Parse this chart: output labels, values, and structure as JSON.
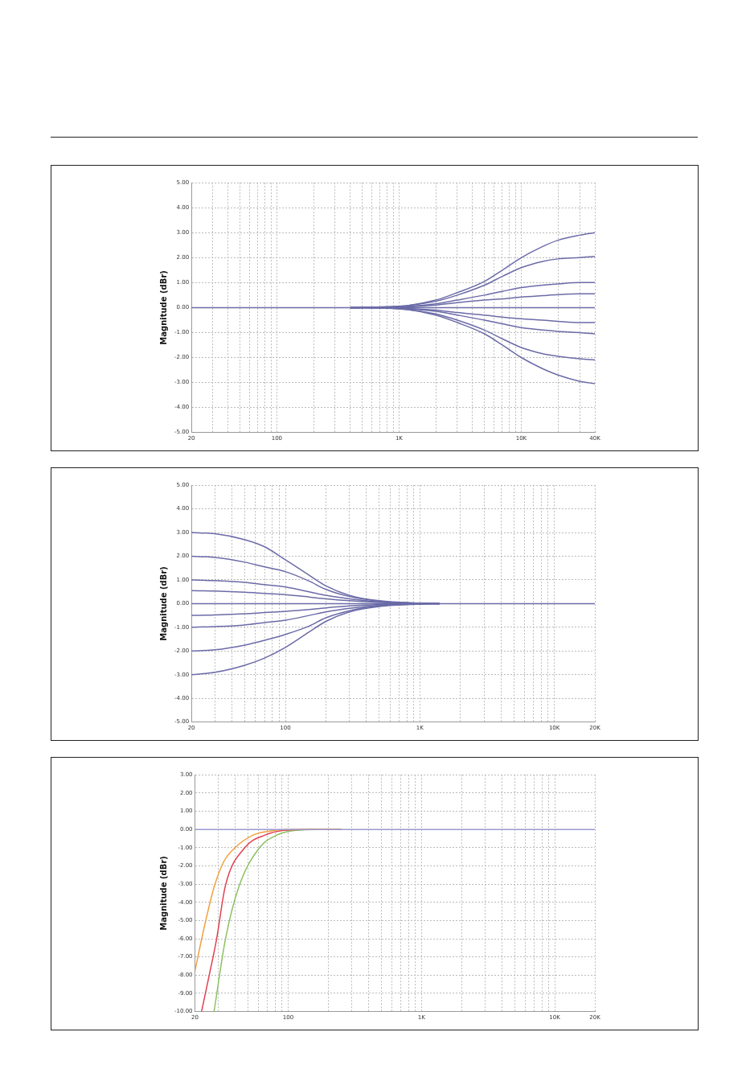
{
  "chart_data": [
    {
      "type": "line",
      "log": "x",
      "grid": true,
      "ylabel": "Magnitude (dBr)",
      "xlim": [
        20,
        40000
      ],
      "ylim": [
        -5,
        5
      ],
      "xticks": [
        {
          "value": 20,
          "label": "20"
        },
        {
          "value": 30,
          "label": null
        },
        {
          "value": 40,
          "label": null
        },
        {
          "value": 50,
          "label": null
        },
        {
          "value": 60,
          "label": null
        },
        {
          "value": 70,
          "label": null
        },
        {
          "value": 80,
          "label": null
        },
        {
          "value": 90,
          "label": null
        },
        {
          "value": 100,
          "label": "100"
        },
        {
          "value": 200,
          "label": null
        },
        {
          "value": 300,
          "label": null
        },
        {
          "value": 400,
          "label": null
        },
        {
          "value": 500,
          "label": null
        },
        {
          "value": 600,
          "label": null
        },
        {
          "value": 700,
          "label": null
        },
        {
          "value": 800,
          "label": null
        },
        {
          "value": 900,
          "label": null
        },
        {
          "value": 1000,
          "label": "1K"
        },
        {
          "value": 2000,
          "label": null
        },
        {
          "value": 3000,
          "label": null
        },
        {
          "value": 4000,
          "label": null
        },
        {
          "value": 5000,
          "label": null
        },
        {
          "value": 6000,
          "label": null
        },
        {
          "value": 7000,
          "label": null
        },
        {
          "value": 8000,
          "label": null
        },
        {
          "value": 9000,
          "label": null
        },
        {
          "value": 10000,
          "label": "10K"
        },
        {
          "value": 20000,
          "label": null
        },
        {
          "value": 30000,
          "label": null
        },
        {
          "value": 40000,
          "label": "40K"
        }
      ],
      "yticks": [
        {
          "value": 5,
          "label": "5.00"
        },
        {
          "value": 4,
          "label": "4.00"
        },
        {
          "value": 3,
          "label": "3.00"
        },
        {
          "value": 2,
          "label": "2.00"
        },
        {
          "value": 1,
          "label": "1.00"
        },
        {
          "value": 0,
          "label": "0.00"
        },
        {
          "value": -1,
          "label": "-1.00"
        },
        {
          "value": -2,
          "label": "-2.00"
        },
        {
          "value": -3,
          "label": "-3.00"
        },
        {
          "value": -4,
          "label": "-4.00"
        },
        {
          "value": -5,
          "label": "-5.00"
        }
      ],
      "series": [
        {
          "color": "#6b6ba8",
          "x": [
            400,
            1000,
            2000,
            3000,
            5000,
            7000,
            10000,
            15000,
            20000,
            30000,
            40000
          ],
          "values": [
            0,
            0.05,
            0.3,
            0.6,
            1.05,
            1.5,
            2.0,
            2.45,
            2.7,
            2.9,
            3.0
          ]
        },
        {
          "color": "#6b6ba8",
          "x": [
            400,
            1000,
            2000,
            3000,
            5000,
            7000,
            10000,
            15000,
            20000,
            30000,
            40000
          ],
          "values": [
            0,
            0.05,
            0.25,
            0.5,
            0.9,
            1.25,
            1.6,
            1.85,
            1.95,
            2.0,
            2.05
          ]
        },
        {
          "color": "#6b6ba8",
          "x": [
            400,
            1000,
            2000,
            3000,
            5000,
            7000,
            10000,
            15000,
            20000,
            30000,
            40000
          ],
          "values": [
            0,
            0.03,
            0.15,
            0.3,
            0.5,
            0.65,
            0.8,
            0.9,
            0.95,
            1.0,
            1.0
          ]
        },
        {
          "color": "#6b6ba8",
          "x": [
            400,
            1000,
            2000,
            3000,
            5000,
            7000,
            10000,
            15000,
            20000,
            30000,
            40000
          ],
          "values": [
            0,
            0.02,
            0.1,
            0.2,
            0.3,
            0.35,
            0.42,
            0.48,
            0.52,
            0.55,
            0.55
          ]
        },
        {
          "color": "#6b6ba8",
          "x": [
            20,
            40000
          ],
          "values": [
            0,
            0
          ]
        },
        {
          "color": "#6b6ba8",
          "x": [
            400,
            1000,
            2000,
            3000,
            5000,
            7000,
            10000,
            15000,
            20000,
            30000,
            40000
          ],
          "values": [
            0,
            -0.02,
            -0.1,
            -0.2,
            -0.3,
            -0.38,
            -0.45,
            -0.5,
            -0.55,
            -0.6,
            -0.6
          ]
        },
        {
          "color": "#6b6ba8",
          "x": [
            400,
            1000,
            2000,
            3000,
            5000,
            7000,
            10000,
            15000,
            20000,
            30000,
            40000
          ],
          "values": [
            0,
            -0.03,
            -0.15,
            -0.3,
            -0.5,
            -0.65,
            -0.8,
            -0.9,
            -0.95,
            -1.0,
            -1.05
          ]
        },
        {
          "color": "#6b6ba8",
          "x": [
            400,
            1000,
            2000,
            3000,
            5000,
            7000,
            10000,
            15000,
            20000,
            30000,
            40000
          ],
          "values": [
            0,
            -0.05,
            -0.25,
            -0.5,
            -0.9,
            -1.25,
            -1.6,
            -1.85,
            -1.95,
            -2.05,
            -2.1
          ]
        },
        {
          "color": "#6b6ba8",
          "x": [
            400,
            1000,
            2000,
            3000,
            5000,
            7000,
            10000,
            15000,
            20000,
            30000,
            40000
          ],
          "values": [
            0,
            -0.05,
            -0.3,
            -0.6,
            -1.05,
            -1.5,
            -2.0,
            -2.45,
            -2.7,
            -2.95,
            -3.05
          ]
        }
      ]
    },
    {
      "type": "line",
      "log": "x",
      "grid": true,
      "ylabel": "Magnitude (dBr)",
      "xlim": [
        20,
        20000
      ],
      "ylim": [
        -5,
        5
      ],
      "xticks": [
        {
          "value": 20,
          "label": "20"
        },
        {
          "value": 30,
          "label": null
        },
        {
          "value": 40,
          "label": null
        },
        {
          "value": 50,
          "label": null
        },
        {
          "value": 60,
          "label": null
        },
        {
          "value": 70,
          "label": null
        },
        {
          "value": 80,
          "label": null
        },
        {
          "value": 90,
          "label": null
        },
        {
          "value": 100,
          "label": "100"
        },
        {
          "value": 200,
          "label": null
        },
        {
          "value": 300,
          "label": null
        },
        {
          "value": 400,
          "label": null
        },
        {
          "value": 500,
          "label": null
        },
        {
          "value": 600,
          "label": null
        },
        {
          "value": 700,
          "label": null
        },
        {
          "value": 800,
          "label": null
        },
        {
          "value": 900,
          "label": null
        },
        {
          "value": 1000,
          "label": "1K"
        },
        {
          "value": 2000,
          "label": null
        },
        {
          "value": 3000,
          "label": null
        },
        {
          "value": 4000,
          "label": null
        },
        {
          "value": 5000,
          "label": null
        },
        {
          "value": 6000,
          "label": null
        },
        {
          "value": 7000,
          "label": null
        },
        {
          "value": 8000,
          "label": null
        },
        {
          "value": 9000,
          "label": null
        },
        {
          "value": 10000,
          "label": "10K"
        },
        {
          "value": 20000,
          "label": "20K"
        }
      ],
      "yticks": [
        {
          "value": 5,
          "label": "5.00"
        },
        {
          "value": 4,
          "label": "4.00"
        },
        {
          "value": 3,
          "label": "3.00"
        },
        {
          "value": 2,
          "label": "2.00"
        },
        {
          "value": 1,
          "label": "1.00"
        },
        {
          "value": 0,
          "label": "0.00"
        },
        {
          "value": -1,
          "label": "-1.00"
        },
        {
          "value": -2,
          "label": "-2.00"
        },
        {
          "value": -3,
          "label": "-3.00"
        },
        {
          "value": -4,
          "label": "-4.00"
        },
        {
          "value": -5,
          "label": "-5.00"
        }
      ],
      "series": [
        {
          "color": "#6b6ba8",
          "x": [
            20,
            30,
            50,
            70,
            100,
            150,
            200,
            300,
            500,
            1000,
            1400
          ],
          "values": [
            3.0,
            2.95,
            2.7,
            2.4,
            1.85,
            1.2,
            0.75,
            0.35,
            0.12,
            0.02,
            0
          ]
        },
        {
          "color": "#6b6ba8",
          "x": [
            20,
            30,
            50,
            70,
            100,
            150,
            200,
            300,
            500,
            1000,
            1400
          ],
          "values": [
            2.0,
            1.95,
            1.75,
            1.55,
            1.35,
            0.95,
            0.6,
            0.3,
            0.1,
            0.02,
            0
          ]
        },
        {
          "color": "#6b6ba8",
          "x": [
            20,
            30,
            50,
            70,
            100,
            150,
            200,
            300,
            500,
            1000,
            1400
          ],
          "values": [
            1.0,
            0.97,
            0.9,
            0.8,
            0.7,
            0.5,
            0.35,
            0.2,
            0.07,
            0.01,
            0
          ]
        },
        {
          "color": "#6b6ba8",
          "x": [
            20,
            30,
            50,
            70,
            100,
            150,
            200,
            300,
            500,
            1000,
            1400
          ],
          "values": [
            0.55,
            0.53,
            0.48,
            0.43,
            0.38,
            0.28,
            0.2,
            0.12,
            0.05,
            0,
            0
          ]
        },
        {
          "color": "#6b6ba8",
          "x": [
            20,
            20000
          ],
          "values": [
            0,
            0
          ]
        },
        {
          "color": "#6b6ba8",
          "x": [
            20,
            30,
            50,
            70,
            100,
            150,
            200,
            300,
            500,
            1000,
            1400
          ],
          "values": [
            -0.5,
            -0.48,
            -0.43,
            -0.38,
            -0.33,
            -0.25,
            -0.18,
            -0.1,
            -0.04,
            0,
            0
          ]
        },
        {
          "color": "#6b6ba8",
          "x": [
            20,
            30,
            50,
            70,
            100,
            150,
            200,
            300,
            500,
            1000,
            1400
          ],
          "values": [
            -1.0,
            -0.97,
            -0.9,
            -0.8,
            -0.7,
            -0.5,
            -0.35,
            -0.2,
            -0.07,
            -0.01,
            0
          ]
        },
        {
          "color": "#6b6ba8",
          "x": [
            20,
            30,
            50,
            70,
            100,
            150,
            200,
            300,
            500,
            1000,
            1400
          ],
          "values": [
            -2.0,
            -1.95,
            -1.75,
            -1.55,
            -1.3,
            -0.95,
            -0.6,
            -0.3,
            -0.1,
            -0.02,
            0
          ]
        },
        {
          "color": "#6b6ba8",
          "x": [
            20,
            30,
            50,
            70,
            100,
            150,
            200,
            300,
            500,
            1000,
            1400
          ],
          "values": [
            -3.0,
            -2.9,
            -2.6,
            -2.3,
            -1.85,
            -1.2,
            -0.75,
            -0.35,
            -0.12,
            -0.02,
            0
          ]
        }
      ]
    },
    {
      "type": "line",
      "log": "x",
      "grid": true,
      "ylabel": "Magnitude (dBr)",
      "xlim": [
        20,
        20000
      ],
      "ylim": [
        -10,
        3
      ],
      "xticks": [
        {
          "value": 20,
          "label": "20"
        },
        {
          "value": 30,
          "label": null
        },
        {
          "value": 40,
          "label": null
        },
        {
          "value": 50,
          "label": null
        },
        {
          "value": 60,
          "label": null
        },
        {
          "value": 70,
          "label": null
        },
        {
          "value": 80,
          "label": null
        },
        {
          "value": 90,
          "label": null
        },
        {
          "value": 100,
          "label": "100"
        },
        {
          "value": 200,
          "label": null
        },
        {
          "value": 300,
          "label": null
        },
        {
          "value": 400,
          "label": null
        },
        {
          "value": 500,
          "label": null
        },
        {
          "value": 600,
          "label": null
        },
        {
          "value": 700,
          "label": null
        },
        {
          "value": 800,
          "label": null
        },
        {
          "value": 900,
          "label": null
        },
        {
          "value": 1000,
          "label": "1K"
        },
        {
          "value": 2000,
          "label": null
        },
        {
          "value": 3000,
          "label": null
        },
        {
          "value": 4000,
          "label": null
        },
        {
          "value": 5000,
          "label": null
        },
        {
          "value": 6000,
          "label": null
        },
        {
          "value": 7000,
          "label": null
        },
        {
          "value": 8000,
          "label": null
        },
        {
          "value": 9000,
          "label": null
        },
        {
          "value": 10000,
          "label": "10K"
        },
        {
          "value": 20000,
          "label": "20K"
        }
      ],
      "yticks": [
        {
          "value": 3,
          "label": "3.00"
        },
        {
          "value": 2,
          "label": "2.00"
        },
        {
          "value": 1,
          "label": "1.00"
        },
        {
          "value": 0,
          "label": "0.00"
        },
        {
          "value": -1,
          "label": "-1.00"
        },
        {
          "value": -2,
          "label": "-2.00"
        },
        {
          "value": -3,
          "label": "-3.00"
        },
        {
          "value": -4,
          "label": "-4.00"
        },
        {
          "value": -5,
          "label": "-5.00"
        },
        {
          "value": -6,
          "label": "-6.00"
        },
        {
          "value": -7,
          "label": "-7.00"
        },
        {
          "value": -8,
          "label": "-8.00"
        },
        {
          "value": -9,
          "label": "-9.00"
        },
        {
          "value": -10,
          "label": "-10.00"
        }
      ],
      "series": [
        {
          "color": "#9a9ad0",
          "x": [
            20,
            20000
          ],
          "values": [
            0,
            0
          ]
        },
        {
          "color": "#f0a040",
          "x": [
            20,
            24,
            28,
            33,
            40,
            55,
            71,
            96,
            250
          ],
          "values": [
            -7.75,
            -5.05,
            -3.1,
            -1.75,
            -1.0,
            -0.3,
            -0.1,
            0,
            0
          ]
        },
        {
          "color": "#e04050",
          "x": [
            22.4,
            25.5,
            29,
            33.8,
            47.3,
            67.7,
            92.3,
            139,
            250
          ],
          "values": [
            -10,
            -8.05,
            -6.05,
            -3.1,
            -1.0,
            -0.3,
            -0.05,
            0,
            0
          ]
        },
        {
          "color": "#8cc060",
          "x": [
            27.8,
            33.8,
            42.9,
            61,
            83,
            113,
            171,
            250
          ],
          "values": [
            -10,
            -6.05,
            -3.1,
            -1.0,
            -0.3,
            -0.05,
            0,
            0
          ]
        }
      ]
    }
  ]
}
